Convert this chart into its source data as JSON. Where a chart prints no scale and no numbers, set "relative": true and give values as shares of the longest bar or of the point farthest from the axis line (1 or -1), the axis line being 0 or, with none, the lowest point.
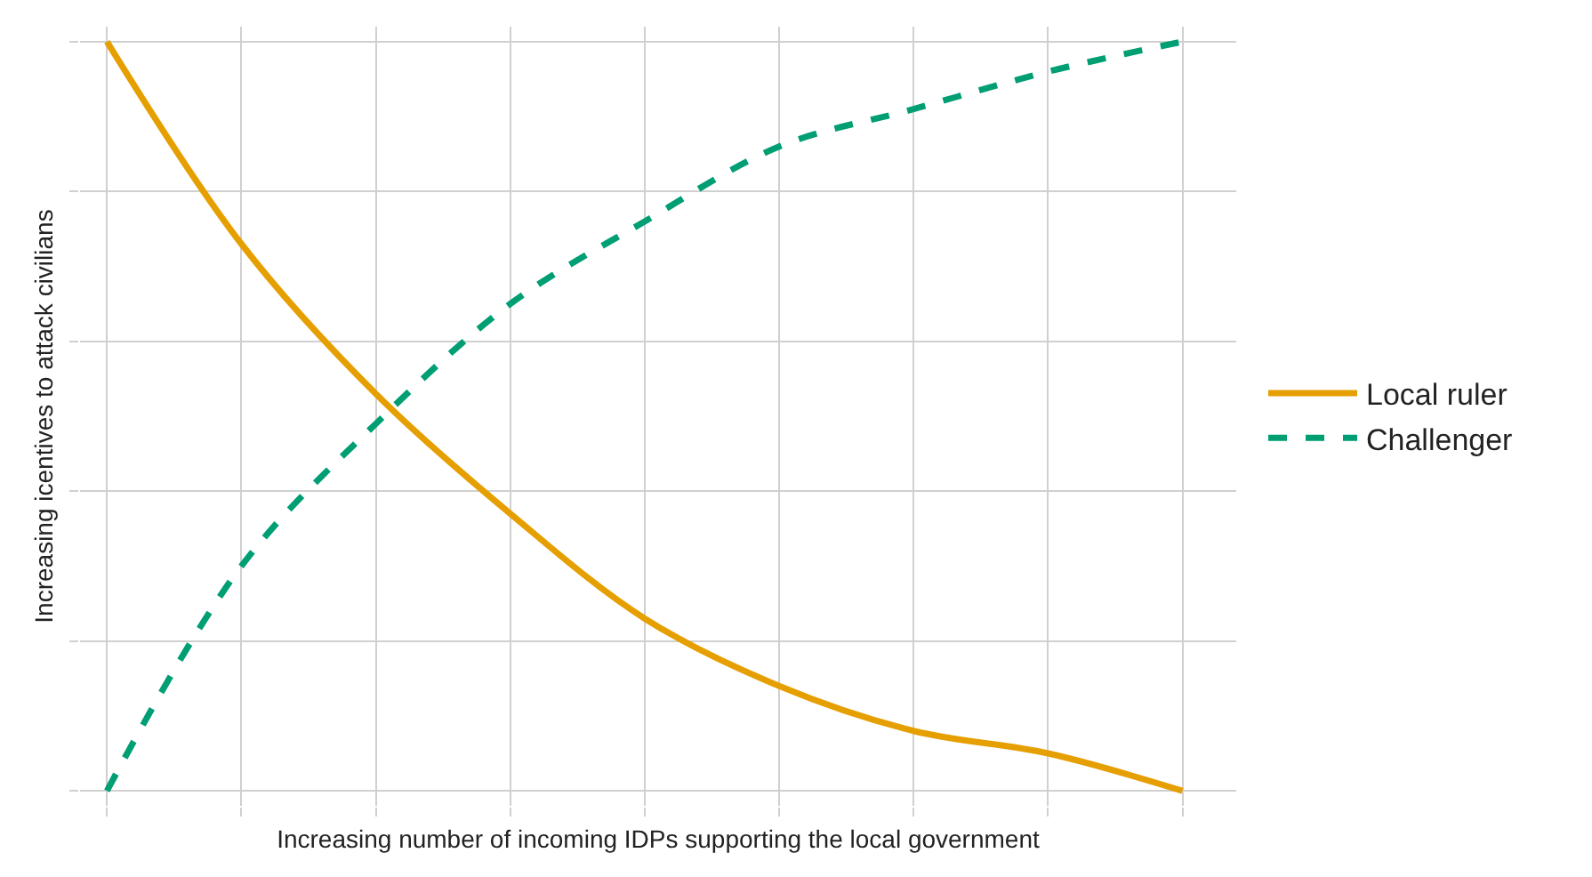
{
  "chart_data": {
    "type": "line",
    "relative": true,
    "xlabel": "Increasing number of incoming IDPs supporting the local government",
    "ylabel": "Increasing icentives to attack civilians",
    "categories": [
      null,
      null,
      null,
      null,
      null,
      null,
      null,
      null,
      null
    ],
    "series": [
      {
        "name": "Local ruler",
        "color": "#e69f00",
        "line_style": "solid",
        "values": [
          1,
          0.73,
          0.53,
          0.37,
          0.23,
          0.14,
          0.08,
          0.05,
          0
        ]
      },
      {
        "name": "Challenger",
        "color": "#009e73",
        "line_style": "dashed",
        "values": [
          0,
          0.3,
          0.49,
          0.65,
          0.76,
          0.86,
          0.91,
          0.96,
          1
        ]
      }
    ],
    "grid": true,
    "legend": "right",
    "marker": "none",
    "tick_labels": false
  }
}
